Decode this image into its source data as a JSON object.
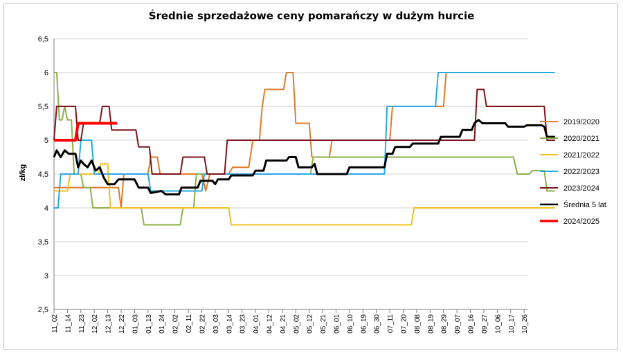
{
  "chart_data": {
    "type": "line",
    "title": "Średnie sprzedażowe ceny pomarańczy w dużym hurcie",
    "ylabel": "zł/kg",
    "xlabel": "",
    "ylim": [
      2.5,
      6.5
    ],
    "y_ticks": [
      "6,5",
      "6",
      "5,5",
      "5",
      "4,5",
      "4",
      "3,5",
      "3",
      "2,5"
    ],
    "y_tick_values": [
      6.5,
      6,
      5.5,
      5,
      4.5,
      4,
      3.5,
      3,
      2.5
    ],
    "categories": [
      "11_02",
      "11_14",
      "11_23",
      "12_02",
      "12_13",
      "12_22",
      "01_03",
      "01_13",
      "01_24",
      "02_02",
      "02_11",
      "02_22",
      "03_03",
      "03_14",
      "03_23",
      "04_01",
      "04_12",
      "04_21",
      "05_02",
      "05_12",
      "05_21",
      "06_01",
      "06_10",
      "06_19",
      "06_30",
      "07_11",
      "07_20",
      "08_08",
      "08_19",
      "08_29",
      "09_07",
      "09_16",
      "09_27",
      "10_06",
      "10_17",
      "10_26"
    ],
    "grid": "horizontal",
    "legend_position": "right",
    "series": [
      {
        "name": "2019/2020",
        "color": "#e07b29",
        "width": 2,
        "points": [
          [
            0,
            4.3
          ],
          [
            3.5,
            4.3
          ],
          [
            4.8,
            4.3
          ],
          [
            5,
            4.0
          ],
          [
            5.2,
            4.5
          ],
          [
            7,
            4.5
          ],
          [
            7.2,
            4.75
          ],
          [
            7.7,
            4.75
          ],
          [
            7.9,
            4.5
          ],
          [
            11,
            4.5
          ],
          [
            11.3,
            4.25
          ],
          [
            11.6,
            4.5
          ],
          [
            13,
            4.5
          ],
          [
            13.3,
            4.6
          ],
          [
            14.5,
            4.6
          ],
          [
            14.8,
            5.0
          ],
          [
            15.3,
            5.0
          ],
          [
            15.5,
            5.5
          ],
          [
            15.7,
            5.75
          ],
          [
            17.1,
            5.75
          ],
          [
            17.3,
            6.0
          ],
          [
            17.8,
            6.0
          ],
          [
            18,
            5.25
          ],
          [
            19,
            5.25
          ],
          [
            19.2,
            4.75
          ],
          [
            20.5,
            4.75
          ],
          [
            20.7,
            5.0
          ],
          [
            25,
            5.0
          ],
          [
            25.2,
            5.5
          ],
          [
            29,
            5.5
          ],
          [
            29.2,
            6.0
          ]
        ]
      },
      {
        "name": "2020/2021",
        "color": "#8cae4a",
        "width": 2,
        "points": [
          [
            0,
            6.0
          ],
          [
            0.2,
            6.0
          ],
          [
            0.4,
            5.3
          ],
          [
            0.6,
            5.3
          ],
          [
            0.8,
            5.5
          ],
          [
            1,
            5.3
          ],
          [
            1.3,
            5.3
          ],
          [
            1.5,
            4.5
          ],
          [
            2,
            4.5
          ],
          [
            2.2,
            4.3
          ],
          [
            2.7,
            4.3
          ],
          [
            2.9,
            4.0
          ],
          [
            3.8,
            4.0
          ],
          [
            4,
            4.0
          ],
          [
            6.5,
            4.0
          ],
          [
            6.7,
            3.75
          ],
          [
            9.4,
            3.75
          ],
          [
            9.6,
            4.0
          ],
          [
            10.4,
            4.0
          ],
          [
            10.6,
            4.5
          ],
          [
            19.1,
            4.5
          ],
          [
            19.3,
            4.75
          ],
          [
            34.2,
            4.75
          ],
          [
            34.5,
            4.5
          ],
          [
            35.4,
            4.5
          ],
          [
            35.6,
            4.55
          ],
          [
            36.5,
            4.55
          ],
          [
            36.7,
            4.25
          ],
          [
            37.3,
            4.25
          ]
        ]
      },
      {
        "name": "2021/2022",
        "color": "#f0c020",
        "width": 2,
        "points": [
          [
            0,
            4.25
          ],
          [
            1,
            4.25
          ],
          [
            1.2,
            4.5
          ],
          [
            3.3,
            4.5
          ],
          [
            3.5,
            4.65
          ],
          [
            4.0,
            4.65
          ],
          [
            4.2,
            4.0
          ],
          [
            13,
            4.0
          ],
          [
            13.2,
            3.75
          ],
          [
            26.6,
            3.75
          ],
          [
            26.8,
            4.0
          ],
          [
            37.3,
            4.0
          ]
        ]
      },
      {
        "name": "2022/2023",
        "color": "#29a8e0",
        "width": 2,
        "points": [
          [
            0,
            4.0
          ],
          [
            0.3,
            4.0
          ],
          [
            0.5,
            4.5
          ],
          [
            1.8,
            4.5
          ],
          [
            2,
            5.0
          ],
          [
            2.8,
            5.0
          ],
          [
            3.0,
            4.5
          ],
          [
            7,
            4.5
          ],
          [
            7.2,
            4.25
          ],
          [
            11,
            4.25
          ],
          [
            11.2,
            4.5
          ],
          [
            24.6,
            4.5
          ],
          [
            24.8,
            5.5
          ],
          [
            28.4,
            5.5
          ],
          [
            28.6,
            6.0
          ],
          [
            37.3,
            6.0
          ]
        ]
      },
      {
        "name": "2023/2024",
        "color": "#7a1418",
        "width": 2,
        "points": [
          [
            0,
            5.0
          ],
          [
            0.2,
            5.5
          ],
          [
            1.6,
            5.5
          ],
          [
            1.8,
            5.0
          ],
          [
            2,
            5.0
          ],
          [
            2.2,
            5.25
          ],
          [
            3.4,
            5.25
          ],
          [
            3.6,
            5.5
          ],
          [
            4.1,
            5.5
          ],
          [
            4.3,
            5.15
          ],
          [
            6.1,
            5.15
          ],
          [
            6.3,
            4.9
          ],
          [
            7.1,
            4.9
          ],
          [
            7.3,
            4.5
          ],
          [
            9.4,
            4.5
          ],
          [
            9.6,
            4.75
          ],
          [
            11.2,
            4.75
          ],
          [
            11.4,
            4.5
          ],
          [
            12.7,
            4.5
          ],
          [
            12.9,
            5.0
          ],
          [
            31.3,
            5.0
          ],
          [
            31.5,
            5.75
          ],
          [
            32,
            5.75
          ],
          [
            32.2,
            5.5
          ],
          [
            36.5,
            5.5
          ],
          [
            36.7,
            5.0
          ],
          [
            37.3,
            5.0
          ]
        ]
      },
      {
        "name": "Średnia 5 lat",
        "color": "#000000",
        "width": 3,
        "points": [
          [
            0,
            4.75
          ],
          [
            0.2,
            4.85
          ],
          [
            0.5,
            4.75
          ],
          [
            0.8,
            4.85
          ],
          [
            1.1,
            4.8
          ],
          [
            1.6,
            4.8
          ],
          [
            1.8,
            4.6
          ],
          [
            2,
            4.7
          ],
          [
            2.2,
            4.65
          ],
          [
            2.5,
            4.6
          ],
          [
            2.8,
            4.7
          ],
          [
            3.1,
            4.55
          ],
          [
            3.4,
            4.6
          ],
          [
            3.7,
            4.45
          ],
          [
            4,
            4.35
          ],
          [
            4.5,
            4.35
          ],
          [
            4.8,
            4.42
          ],
          [
            6,
            4.42
          ],
          [
            6.3,
            4.3
          ],
          [
            7,
            4.3
          ],
          [
            7.2,
            4.22
          ],
          [
            8,
            4.25
          ],
          [
            8.3,
            4.2
          ],
          [
            9.3,
            4.2
          ],
          [
            9.5,
            4.3
          ],
          [
            10.7,
            4.3
          ],
          [
            10.9,
            4.4
          ],
          [
            11.8,
            4.4
          ],
          [
            12.0,
            4.35
          ],
          [
            12.2,
            4.42
          ],
          [
            13,
            4.42
          ],
          [
            13.2,
            4.48
          ],
          [
            14.8,
            4.48
          ],
          [
            15,
            4.55
          ],
          [
            15.6,
            4.55
          ],
          [
            15.8,
            4.7
          ],
          [
            17.3,
            4.7
          ],
          [
            17.5,
            4.75
          ],
          [
            18,
            4.75
          ],
          [
            18.2,
            4.6
          ],
          [
            19.2,
            4.6
          ],
          [
            19.4,
            4.65
          ],
          [
            19.6,
            4.5
          ],
          [
            21.8,
            4.5
          ],
          [
            22,
            4.6
          ],
          [
            24.6,
            4.6
          ],
          [
            24.8,
            4.8
          ],
          [
            25.2,
            4.8
          ],
          [
            25.4,
            4.9
          ],
          [
            26.5,
            4.9
          ],
          [
            26.7,
            4.95
          ],
          [
            28.6,
            4.95
          ],
          [
            28.8,
            5.05
          ],
          [
            30.2,
            5.05
          ],
          [
            30.4,
            5.15
          ],
          [
            31.1,
            5.15
          ],
          [
            31.3,
            5.25
          ],
          [
            31.6,
            5.3
          ],
          [
            31.9,
            5.25
          ],
          [
            33.6,
            5.25
          ],
          [
            33.8,
            5.2
          ],
          [
            35,
            5.2
          ],
          [
            35.2,
            5.22
          ],
          [
            36.3,
            5.22
          ],
          [
            36.5,
            5.2
          ],
          [
            36.7,
            5.05
          ],
          [
            37.3,
            5.05
          ]
        ]
      },
      {
        "name": "2024/2025",
        "color": "#ff0000",
        "width": 4,
        "points": [
          [
            0,
            5.0
          ],
          [
            1.6,
            5.0
          ],
          [
            1.8,
            5.25
          ],
          [
            4.7,
            5.25
          ]
        ]
      }
    ]
  }
}
